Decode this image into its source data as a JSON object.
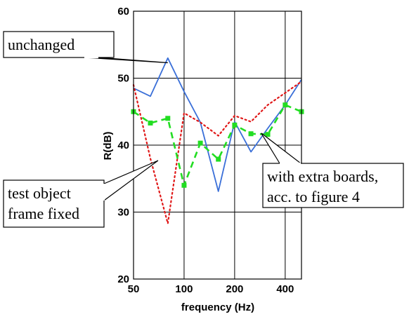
{
  "chart_data": {
    "type": "line",
    "title": "",
    "xlabel": "frequency (Hz)",
    "ylabel": "R(dB)",
    "x_scale": "log",
    "xlim": [
      50,
      500
    ],
    "ylim": [
      20,
      60
    ],
    "x_ticks": [
      {
        "value": 50,
        "label": "50"
      },
      {
        "value": 100,
        "label": "100"
      },
      {
        "value": 200,
        "label": "200"
      },
      {
        "value": 400,
        "label": "400"
      }
    ],
    "y_ticks": [
      {
        "value": 20,
        "label": "20"
      },
      {
        "value": 30,
        "label": "30"
      },
      {
        "value": 40,
        "label": "40"
      },
      {
        "value": 50,
        "label": "50"
      },
      {
        "value": 60,
        "label": "60"
      }
    ],
    "x_gridlines": [
      50,
      100,
      200,
      400
    ],
    "y_gridlines": [
      20,
      30,
      40,
      50,
      60
    ],
    "grid": true,
    "x": [
      50,
      63,
      80,
      100,
      125,
      160,
      200,
      250,
      315,
      400,
      500
    ],
    "series": [
      {
        "name": "unchanged",
        "color": "#3a6fd8",
        "dash": "solid",
        "markers": false,
        "values": [
          48.5,
          47.3,
          53.0,
          48.0,
          43.4,
          33.1,
          43.5,
          39.0,
          42.5,
          46.0,
          49.8
        ]
      },
      {
        "name": "test object frame fixed",
        "color": "#e01818",
        "dash": "dotted",
        "markers": false,
        "values": [
          49.0,
          38.0,
          28.3,
          44.8,
          43.4,
          41.4,
          44.4,
          43.5,
          46.0,
          47.8,
          49.5
        ]
      },
      {
        "name": "with extra boards, acc. to figure 4",
        "color": "#22dd22",
        "dash": "dashed",
        "markers": true,
        "values": [
          45.0,
          43.3,
          44.0,
          34.0,
          40.3,
          37.9,
          43.0,
          41.7,
          41.6,
          46.0,
          45.0
        ]
      }
    ],
    "callouts": [
      {
        "name": "unchanged",
        "lines": [
          "unchanged"
        ],
        "series_index": 0,
        "at_x": 80,
        "at_y": 52.3
      },
      {
        "name": "test-object",
        "lines": [
          "test object",
          "frame fixed"
        ],
        "series_index": 1,
        "at_x": 70,
        "at_y": 37.7
      },
      {
        "name": "extra-boards",
        "lines": [
          "with extra boards,",
          "acc. to figure 4"
        ],
        "series_index": 2,
        "at_x": 288,
        "at_y": 41.8
      }
    ]
  }
}
